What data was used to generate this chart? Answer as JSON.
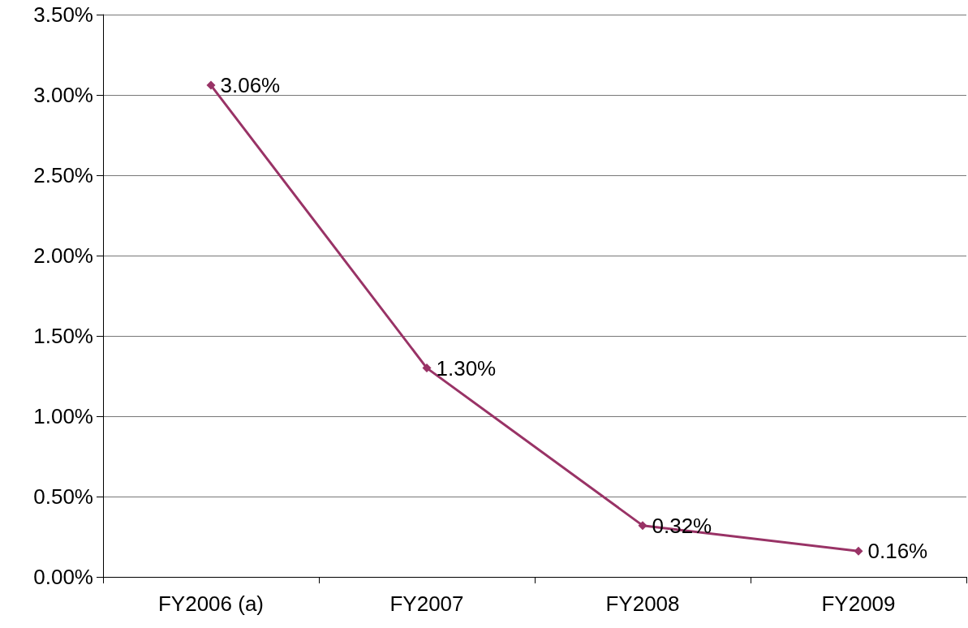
{
  "chart_data": {
    "type": "line",
    "categories": [
      "FY2006 (a)",
      "FY2007",
      "FY2008",
      "FY2009"
    ],
    "series": [
      {
        "color": "#993366",
        "values": [
          3.06,
          1.3,
          0.32,
          0.16
        ],
        "value_labels": [
          "3.06%",
          "1.30%",
          "0.32%",
          "0.16%"
        ]
      }
    ],
    "ylim": [
      0,
      3.5
    ],
    "yticks": [
      {
        "value": 0,
        "label": "0.00%"
      },
      {
        "value": 0.5,
        "label": "0.50%"
      },
      {
        "value": 1,
        "label": "1.00%"
      },
      {
        "value": 1.5,
        "label": "1.50%"
      },
      {
        "value": 2,
        "label": "2.00%"
      },
      {
        "value": 2.5,
        "label": "2.50%"
      },
      {
        "value": 3,
        "label": "3.00%"
      },
      {
        "value": 3.5,
        "label": "3.50%"
      }
    ],
    "grid": "y",
    "marker": "diamond",
    "line_style": "solid"
  }
}
